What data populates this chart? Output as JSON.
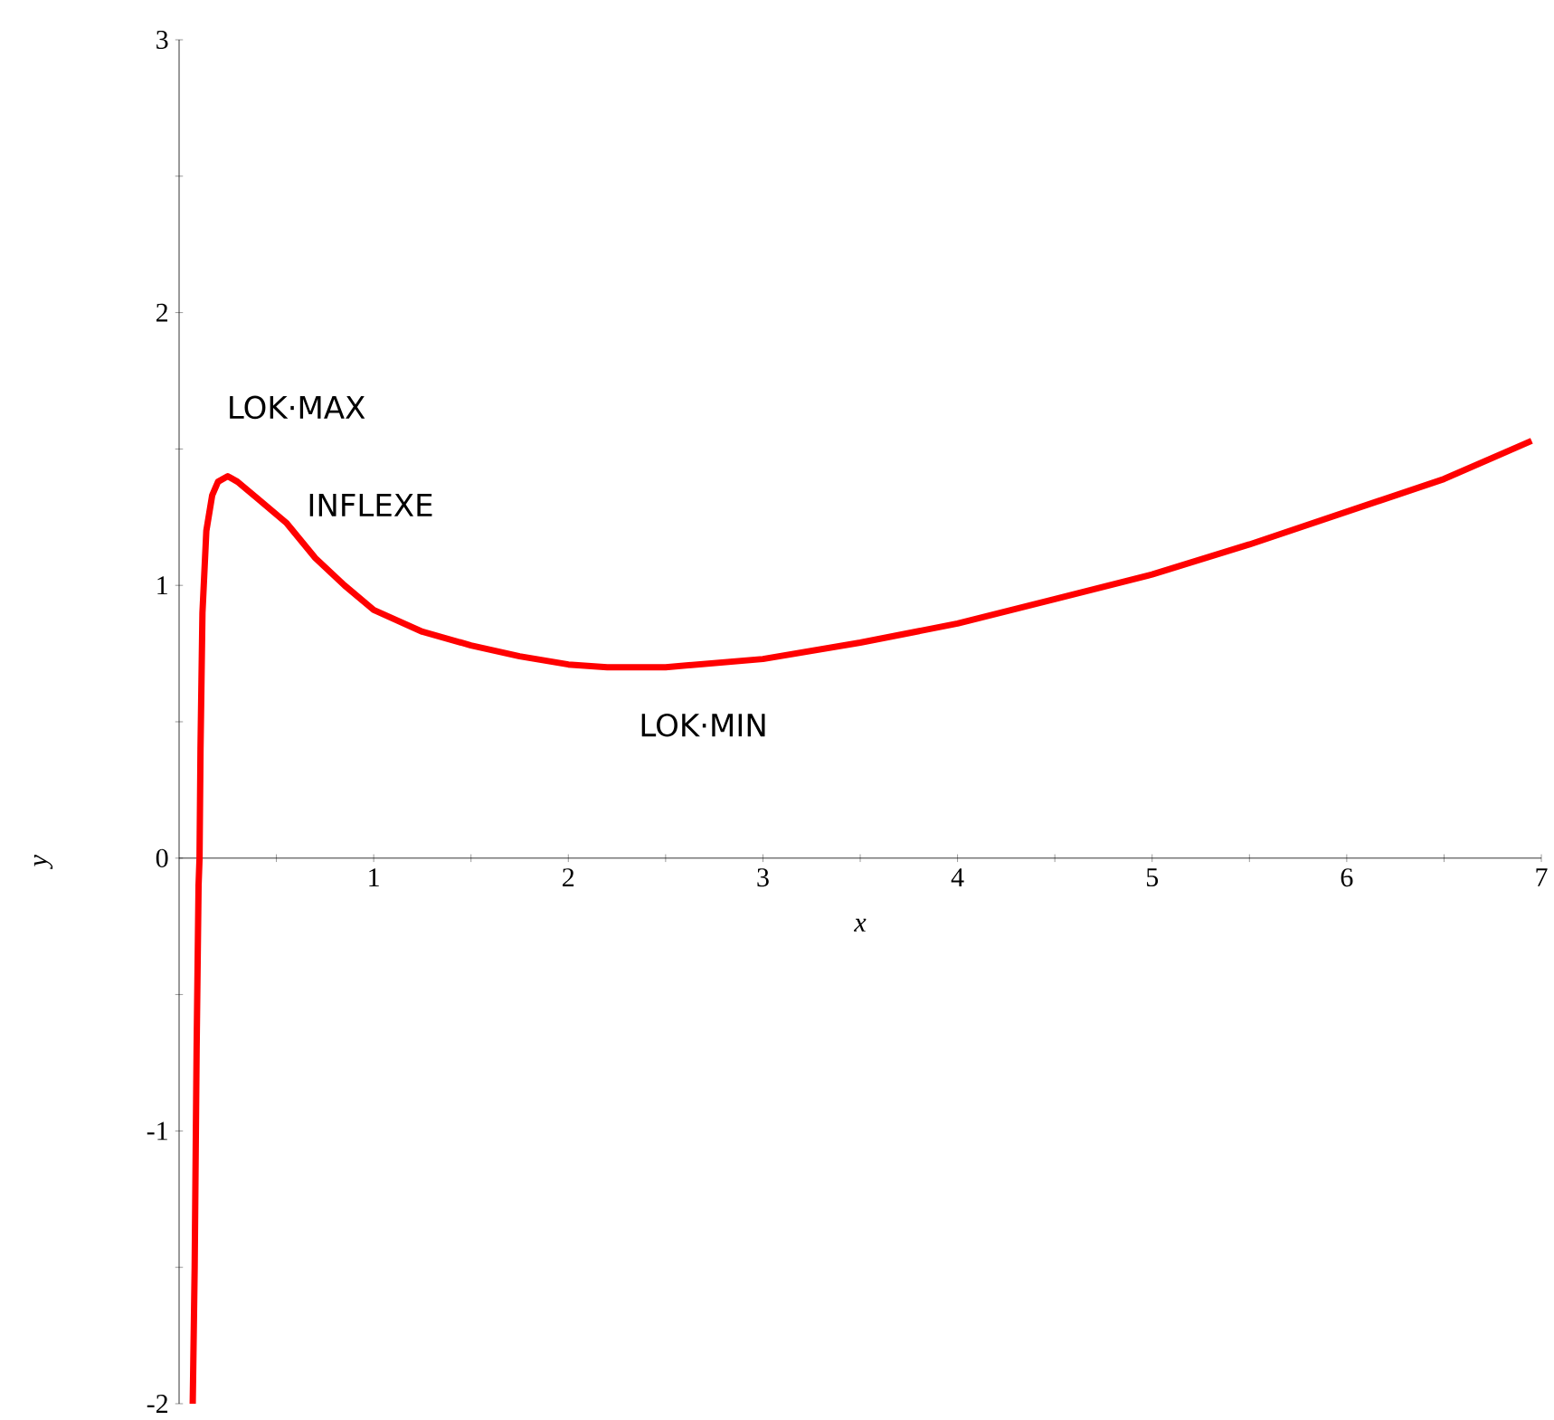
{
  "chart_data": {
    "type": "line",
    "xlabel": "x",
    "ylabel": "y",
    "x": [
      0.07,
      0.08,
      0.09,
      0.1,
      0.105,
      0.11,
      0.12,
      0.14,
      0.17,
      0.2,
      0.25,
      0.3,
      0.4,
      0.55,
      0.7,
      0.85,
      1.0,
      1.25,
      1.5,
      1.75,
      2.0,
      2.2,
      2.5,
      3.0,
      3.5,
      4.0,
      4.5,
      5.0,
      5.5,
      6.0,
      6.5,
      6.95
    ],
    "series": [
      {
        "color": "#ff0000",
        "values": [
          -2.0,
          -1.5,
          -0.7,
          -0.1,
          0.0,
          0.4,
          0.9,
          1.2,
          1.33,
          1.38,
          1.4,
          1.38,
          1.32,
          1.23,
          1.1,
          1.0,
          0.91,
          0.83,
          0.78,
          0.74,
          0.71,
          0.7,
          0.7,
          0.73,
          0.79,
          0.86,
          0.95,
          1.04,
          1.15,
          1.27,
          1.39,
          1.53
        ]
      }
    ],
    "xlim": [
      0,
      7
    ],
    "ylim": [
      -2,
      3
    ],
    "xticks": [
      {
        "value": 0.5,
        "label": null
      },
      1,
      {
        "value": 1.5,
        "label": null
      },
      2,
      {
        "value": 2.5,
        "label": null
      },
      3,
      {
        "value": 3.5,
        "label": null
      },
      4,
      {
        "value": 4.5,
        "label": null
      },
      5,
      {
        "value": 5.5,
        "label": null
      },
      6,
      {
        "value": 6.5,
        "label": null
      },
      7
    ],
    "yticks": [
      -2,
      {
        "value": -1.5,
        "label": null
      },
      -1,
      {
        "value": -0.5,
        "label": null
      },
      0,
      {
        "value": 0.5,
        "label": null
      },
      1,
      {
        "value": 1.5,
        "label": null
      },
      2,
      {
        "value": 2.5,
        "label": null
      },
      3
    ],
    "annotations": [
      {
        "text": "LOK·MAX",
        "x": 0.25,
        "y": 1.4
      },
      {
        "text": "INFLEXE",
        "x": 0.55,
        "y": 1.23
      },
      {
        "text": "LOK·MIN",
        "x": 2.2,
        "y": 0.7
      }
    ],
    "marker": "none",
    "line_style": "solid"
  }
}
